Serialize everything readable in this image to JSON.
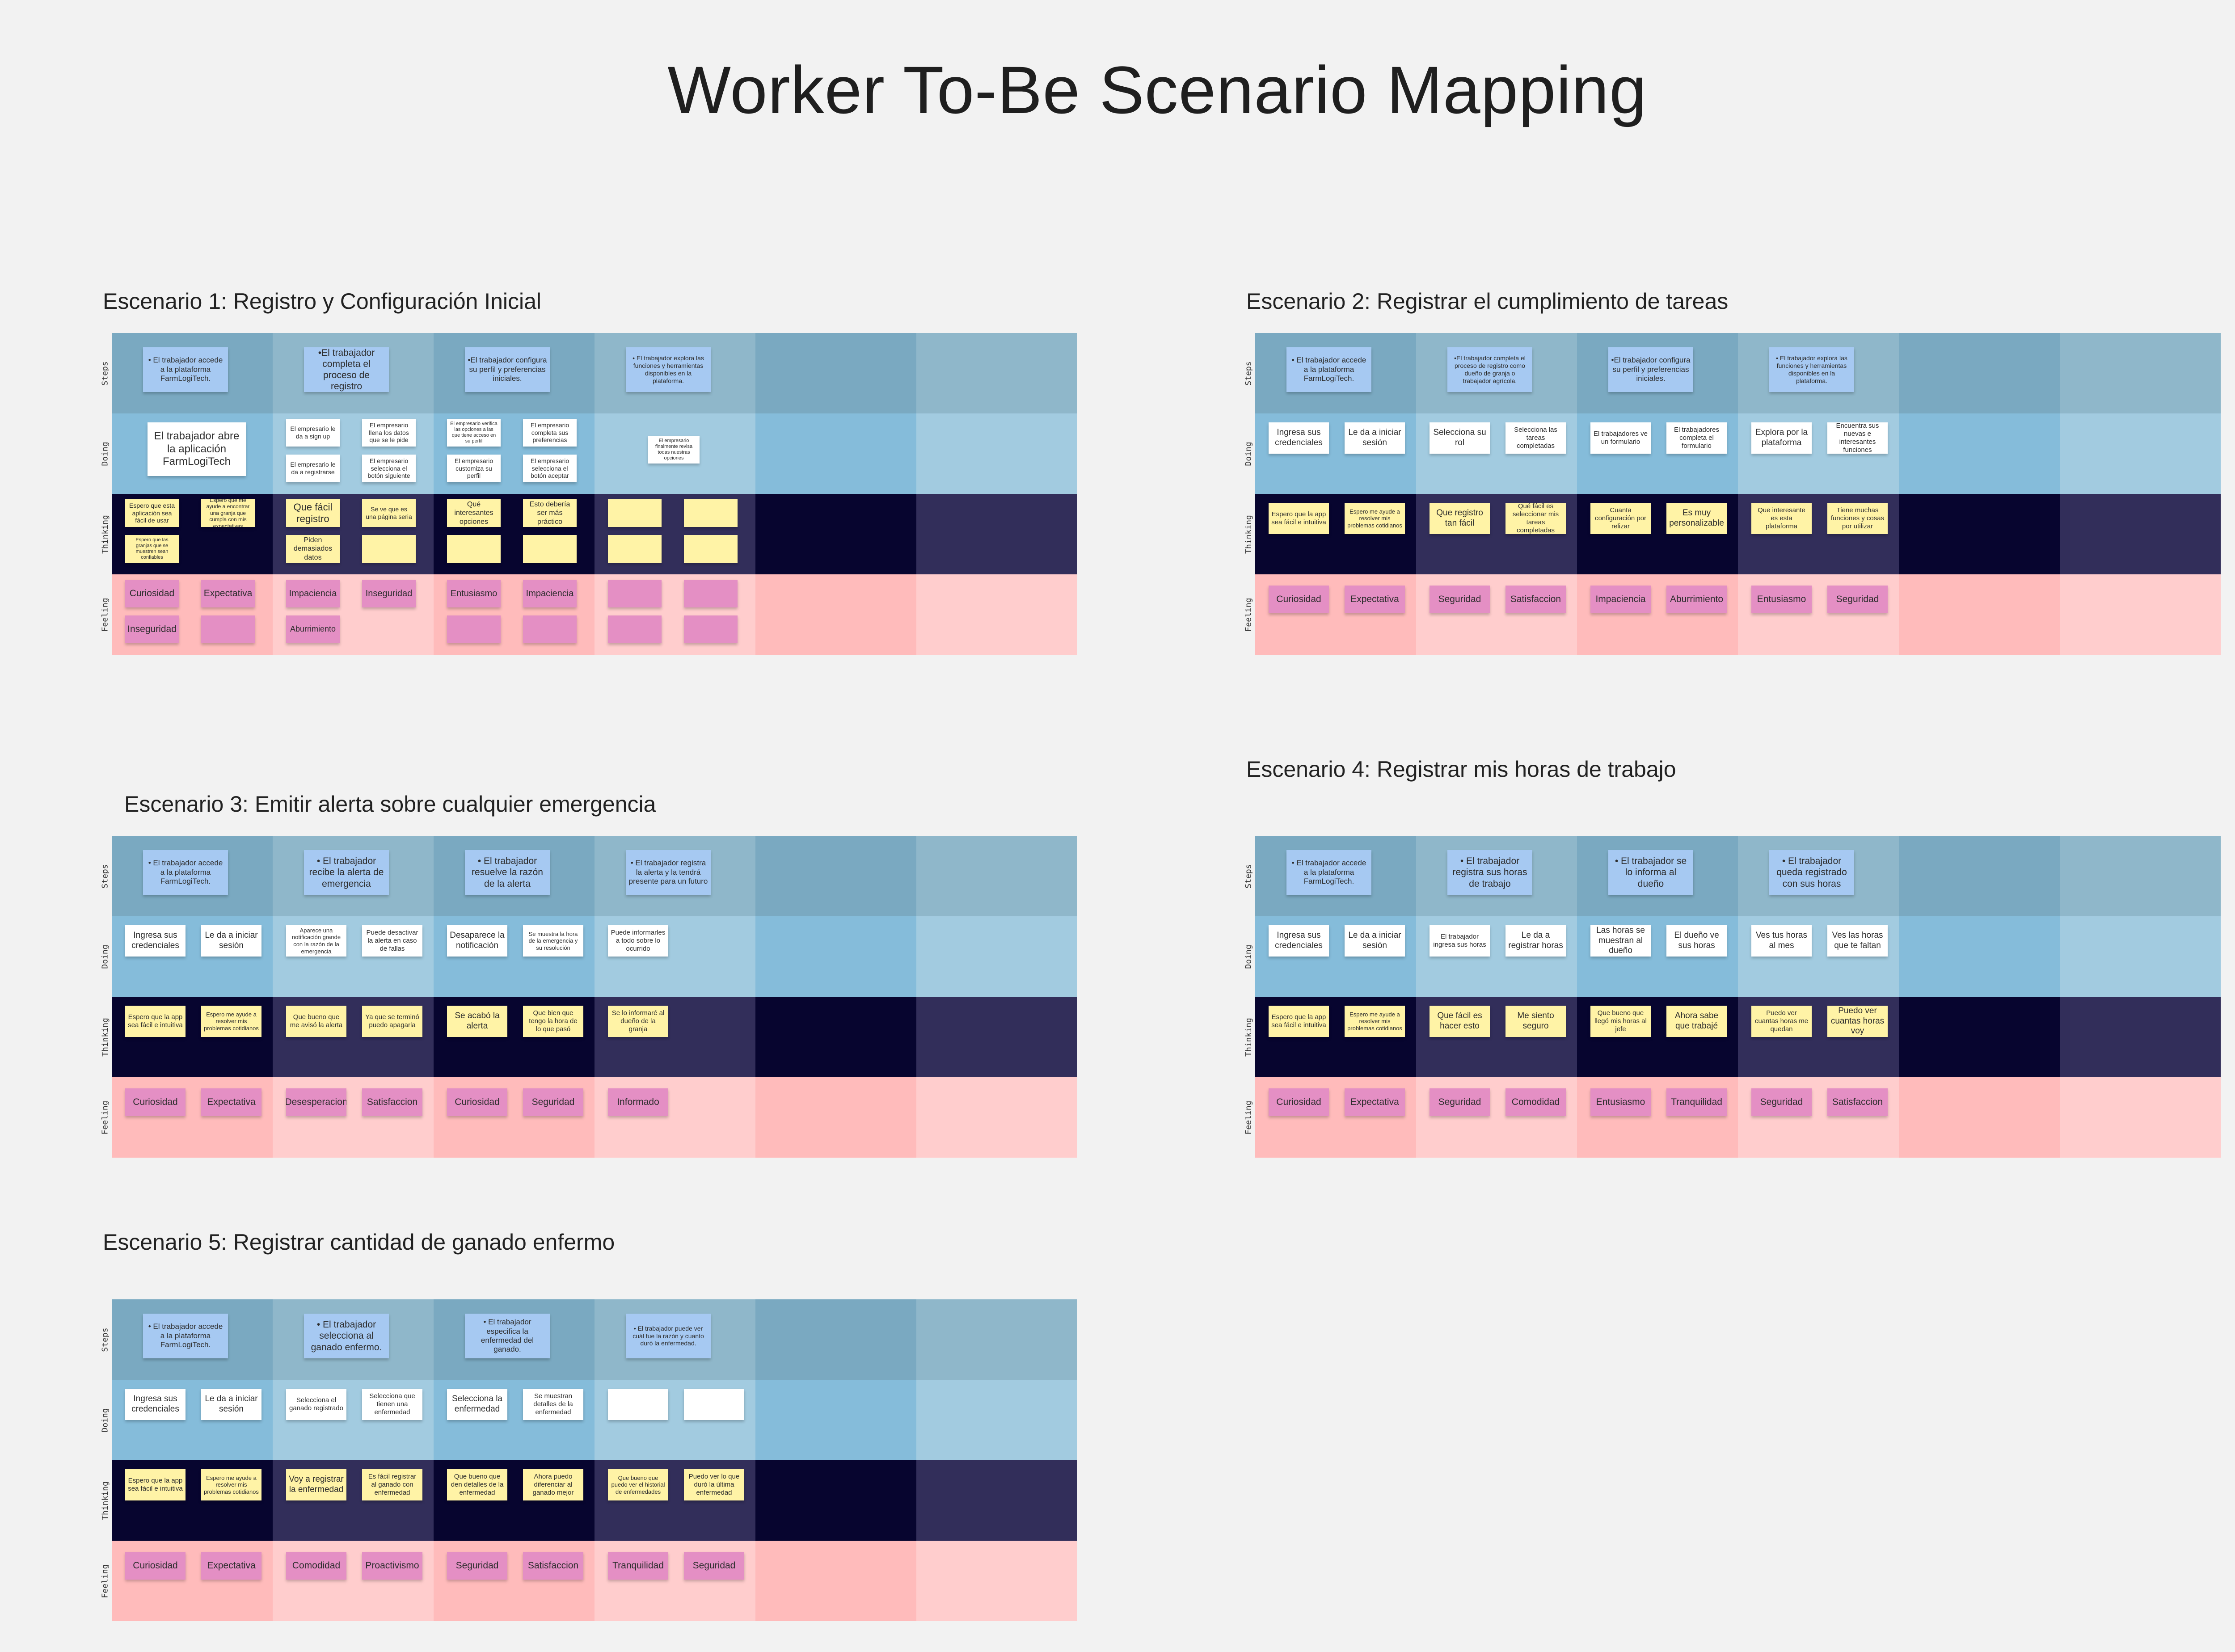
{
  "title": "Worker To-Be Scenario Mapping",
  "lanes": [
    "Steps",
    "Doing",
    "Thinking",
    "Feeling"
  ],
  "colors": {
    "background": "#f2f2f2",
    "steps": [
      "#7aa9c1",
      "#8fb7ca"
    ],
    "doing": [
      "#85bcda",
      "#a2cbe0"
    ],
    "thinking": [
      "#07052f",
      "#322e5a"
    ],
    "feeling": [
      "#ffbbbb",
      "#ffcdcd"
    ],
    "step_note": "#a6c9f2",
    "doing_note": "#ffffff",
    "thinking_note": "#fff3a6",
    "feeling_note": "#e48fc4"
  },
  "scenarios": [
    {
      "title": "Escenario 1: Registro y Configuración Inicial",
      "steps": [
        "• El trabajador accede a la plataforma FarmLogiTech.",
        "•El trabajador completa el proceso de registro",
        "•El trabajador configura su perfil y preferencias iniciales.",
        "• El trabajador explora las funciones y herramientas disponibles en la plataforma."
      ],
      "doing": [
        "El trabajador abre la aplicación FarmLogiTech",
        "El empresario le da a sign up",
        "El empresario llena los datos que se le pide",
        "El empresario le da a registrarse",
        "El empresario selecciona el botón siguiente",
        "El empresario verifica las opciones a las que tiene acceso en su perfil",
        "El empresario completa sus preferencias",
        "El empresario customiza su perfil",
        "El empresario selecciona el botón aceptar",
        "El empresario finalmente revisa todas nuestras opciones",
        "",
        "",
        ""
      ],
      "thinking": [
        "Espero que esta aplicación sea fácil de usar",
        "Espero que me ayude a encontrar una granja que cumpla con mis expectativas",
        "Espero que las granjas que se muestren sean confiables",
        "Que fácil registro",
        "Piden demasiados datos",
        "Se ve que es una página seria",
        "Qué interesantes opciones",
        "Esto debería ser más práctico",
        "",
        "",
        "",
        "",
        "",
        "",
        "",
        ""
      ],
      "feeling": [
        "Curiosidad",
        "Expectativa",
        "Inseguridad",
        "Impaciencia",
        "Inseguridad",
        "Aburrimiento",
        "Entusiasmo",
        "Impaciencia",
        "",
        "",
        "",
        "",
        "",
        "",
        "",
        ""
      ]
    },
    {
      "title": "Escenario 2: Registrar el cumplimiento de tareas",
      "steps": [
        "• El trabajador accede a la plataforma FarmLogiTech.",
        "•El trabajador completa el proceso de registro como dueño de granja o trabajador agrícola.",
        "•El trabajador configura su perfil y preferencias iniciales.",
        "• El trabajador explora las funciones y herramientas disponibles en la plataforma."
      ],
      "doing": [
        "Ingresa sus credenciales",
        "Le da a iniciar sesión",
        "Selecciona su rol",
        "Selecciona las tareas completadas",
        "El trabajadores ve un formulario",
        "El trabajadores completa el formulario",
        "Explora por la plataforma",
        "Encuentra sus nuevas e interesantes funciones"
      ],
      "thinking": [
        "Espero que la app sea fácil e intuitiva",
        "Espero me ayude a resolver mis problemas cotidianos",
        "Que registro tan fácil",
        "Qué fácil es seleccionar mis tareas completadas",
        "Cuanta configuración por relizar",
        "Es muy personalizable",
        "Que interesante es esta plataforma",
        "Tiene muchas funciones y cosas por utilizar"
      ],
      "feeling": [
        "Curiosidad",
        "Expectativa",
        "Seguridad",
        "Satisfaccion",
        "Impaciencia",
        "Aburrimiento",
        "Entusiasmo",
        "Seguridad"
      ]
    },
    {
      "title": "Escenario 3: Emitir alerta sobre cualquier emergencia",
      "steps": [
        "• El trabajador accede a la plataforma FarmLogiTech.",
        "• El trabajador recibe la alerta de emergencia",
        "• El trabajador resuelve la razón de la alerta",
        "• El trabajador registra la alerta y la tendrá presente para un futuro"
      ],
      "doing": [
        "Ingresa sus credenciales",
        "Le da a iniciar sesión",
        "Aparece una notificación grande con la razón de la emergencia",
        "Puede desactivar la alerta en caso de fallas",
        "Desaparece la notificación",
        "Se muestra la hora de la emergencia y su resolución",
        "Puede informarles a todo sobre lo ocurrido"
      ],
      "thinking": [
        "Espero que la app sea fácil e intuitiva",
        "Espero me ayude a resolver mis problemas cotidianos",
        "Que bueno que me avisó la alerta",
        "Ya que se terminó puedo apagarla",
        "Se acabó la alerta",
        "Que bien que tengo la hora de lo que pasó",
        "Se lo informaré al dueño de la granja"
      ],
      "feeling": [
        "Curiosidad",
        "Expectativa",
        "Desesperacion",
        "Satisfaccion",
        "Curiosidad",
        "Seguridad",
        "Informado"
      ]
    },
    {
      "title": "Escenario 4: Registrar mis horas de trabajo",
      "steps": [
        "• El trabajador accede a la plataforma FarmLogiTech.",
        "• El trabajador registra sus horas de trabajo",
        "• El trabajador se lo informa al dueño",
        "• El trabajador queda registrado con sus horas"
      ],
      "doing": [
        "Ingresa sus credenciales",
        "Le da a iniciar sesión",
        "El trabajador ingresa sus horas",
        "Le da a registrar horas",
        "Las horas se muestran al dueño",
        "El dueño ve sus horas",
        "Ves tus horas al mes",
        "Ves las horas que te faltan"
      ],
      "thinking": [
        "Espero que la app sea fácil e intuitiva",
        "Espero me ayude a resolver mis problemas cotidianos",
        "Que fácil es hacer esto",
        "Me siento seguro",
        "Que bueno que llegó mis horas al jefe",
        "Ahora sabe que trabajé",
        "Puedo ver cuantas horas me quedan",
        "Puedo ver cuantas horas voy"
      ],
      "feeling": [
        "Curiosidad",
        "Expectativa",
        "Seguridad",
        "Comodidad",
        "Entusiasmo",
        "Tranquilidad",
        "Seguridad",
        "Satisfaccion"
      ]
    },
    {
      "title": "Escenario 5: Registrar cantidad de ganado enfermo",
      "steps": [
        "• El trabajador accede a la plataforma FarmLogiTech.",
        "• El trabajador selecciona al ganado enfermo.",
        "• El trabajador especifica la enfermedad del ganado.",
        "• El trabajador puede ver cuál fue la razón y cuanto duró la enfermedad."
      ],
      "doing": [
        "Ingresa sus credenciales",
        "Le da a iniciar sesión",
        "Selecciona el ganado registrado",
        "Selecciona que tienen una enfermedad",
        "Selecciona la enfermedad",
        "Se muestran detalles de la enfermedad",
        "",
        ""
      ],
      "thinking": [
        "Espero que la app sea fácil e intuitiva",
        "Espero me ayude a resolver mis problemas cotidianos",
        "Voy a registrar la enfermedad",
        "Es fácil registrar al ganado con enfermedad",
        "Que bueno que den detalles de la enfermedad",
        "Ahora puedo diferenciar al ganado mejor",
        "Que bueno que puedo ver el historial de enfermedades",
        "Puedo ver lo que duró la última enfermedad"
      ],
      "feeling": [
        "Curiosidad",
        "Expectativa",
        "Comodidad",
        "Proactivismo",
        "Seguridad",
        "Satisfaccion",
        "Tranquilidad",
        "Seguridad"
      ]
    }
  ]
}
